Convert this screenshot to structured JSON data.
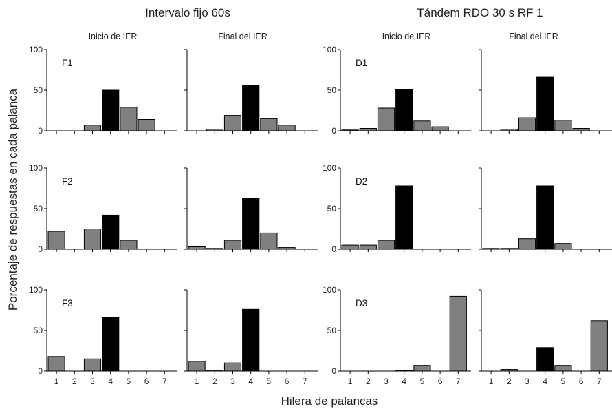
{
  "chart_data": {
    "type": "bar",
    "group_titles": [
      "Intervalo fijo 60s",
      "Tándem RDO 30 s RF 1"
    ],
    "column_labels": [
      "Inicio de IER",
      "Final del IER",
      "Inicio de IER",
      "Final del IER"
    ],
    "xlabel": "Hilera de palancas",
    "ylabel": "Porcentaje de respuestas en cada palanca",
    "categories": [
      "1",
      "2",
      "3",
      "4",
      "5",
      "6",
      "7"
    ],
    "yticks": [
      "0",
      "50",
      "100"
    ],
    "ylim": [
      0,
      100
    ],
    "colors": {
      "target": "#000000",
      "other": "#808080",
      "outline": "#000000"
    },
    "panels": [
      {
        "row": 0,
        "col": 0,
        "id": "F1",
        "values": [
          0,
          0,
          7,
          50,
          29,
          14,
          0
        ],
        "target_index": 3
      },
      {
        "row": 0,
        "col": 1,
        "id": "",
        "values": [
          0,
          2,
          19,
          56,
          15,
          7,
          0
        ],
        "target_index": 3
      },
      {
        "row": 0,
        "col": 2,
        "id": "D1",
        "values": [
          1,
          3,
          28,
          51,
          12,
          5,
          0
        ],
        "target_index": 3
      },
      {
        "row": 0,
        "col": 3,
        "id": "",
        "values": [
          0,
          2,
          16,
          66,
          13,
          3,
          0
        ],
        "target_index": 3
      },
      {
        "row": 1,
        "col": 0,
        "id": "F2",
        "values": [
          22,
          0,
          25,
          42,
          11,
          0,
          0
        ],
        "target_index": 3
      },
      {
        "row": 1,
        "col": 1,
        "id": "",
        "values": [
          3,
          1,
          11,
          63,
          20,
          2,
          0
        ],
        "target_index": 3
      },
      {
        "row": 1,
        "col": 2,
        "id": "D2",
        "values": [
          5,
          5,
          11,
          78,
          0,
          0,
          0
        ],
        "target_index": 3
      },
      {
        "row": 1,
        "col": 3,
        "id": "",
        "values": [
          1,
          1,
          13,
          78,
          7,
          0,
          0
        ],
        "target_index": 3
      },
      {
        "row": 2,
        "col": 0,
        "id": "F3",
        "values": [
          18,
          0,
          15,
          66,
          0,
          0,
          0
        ],
        "target_index": 3
      },
      {
        "row": 2,
        "col": 1,
        "id": "",
        "values": [
          12,
          1,
          10,
          76,
          0,
          0,
          0
        ],
        "target_index": 3
      },
      {
        "row": 2,
        "col": 2,
        "id": "D3",
        "values": [
          0,
          0,
          0,
          1,
          7,
          0,
          92
        ],
        "target_index": 3
      },
      {
        "row": 2,
        "col": 3,
        "id": "",
        "values": [
          0,
          2,
          0,
          29,
          7,
          0,
          62
        ],
        "target_index": 3
      }
    ]
  }
}
